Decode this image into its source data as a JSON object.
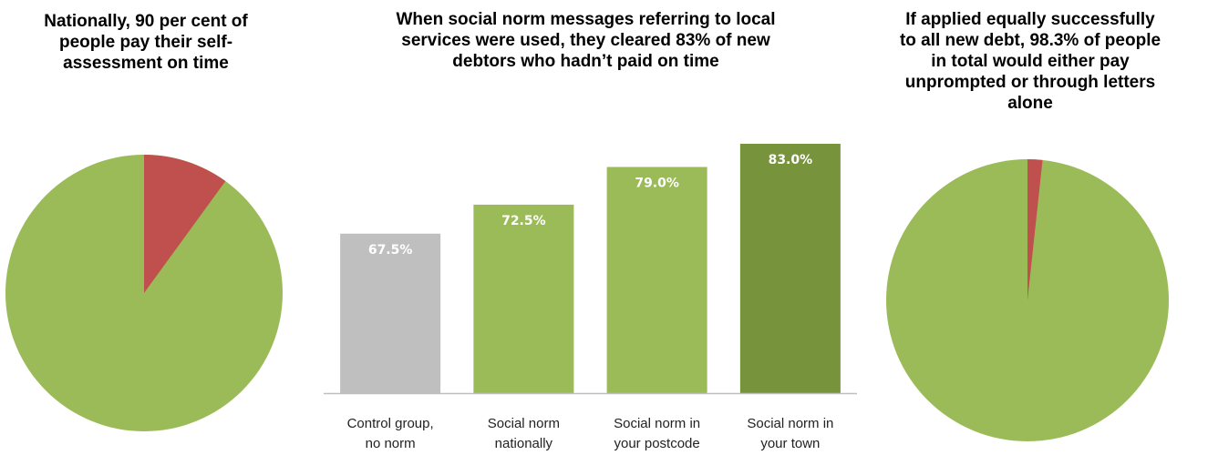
{
  "chart_data": [
    {
      "type": "pie",
      "title": "Nationally, 90 per cent of\npeople pay their self-\nassessment on time",
      "slices": [
        {
          "value": 90,
          "color": "#9bbb59"
        },
        {
          "value": 10,
          "color": "#c0504d"
        }
      ]
    },
    {
      "type": "bar",
      "title": "When social norm messages referring to local\nservices were used, they cleared 83% of new\ndebtors who hadn’t paid on time",
      "categories": [
        "Control group,\nno norm",
        "Social norm\nnationally",
        "Social norm in\nyour postcode",
        "Social norm in\nyour town"
      ],
      "values": [
        67.5,
        72.5,
        79.0,
        83.0
      ],
      "value_labels": [
        "67.5%",
        "72.5%",
        "79.0%",
        "83.0%"
      ],
      "colors": [
        "#bfbfbf",
        "#9bbb59",
        "#9bbb59",
        "#77933c"
      ],
      "ylim": [
        40,
        83
      ],
      "grid": false
    },
    {
      "type": "pie",
      "title": "If applied equally successfully\nto all new debt, 98.3% of people\nin total would either pay\nunprompted or through letters\nalone",
      "slices": [
        {
          "value": 98.3,
          "color": "#9bbb59"
        },
        {
          "value": 1.7,
          "color": "#c0504d"
        }
      ]
    }
  ]
}
